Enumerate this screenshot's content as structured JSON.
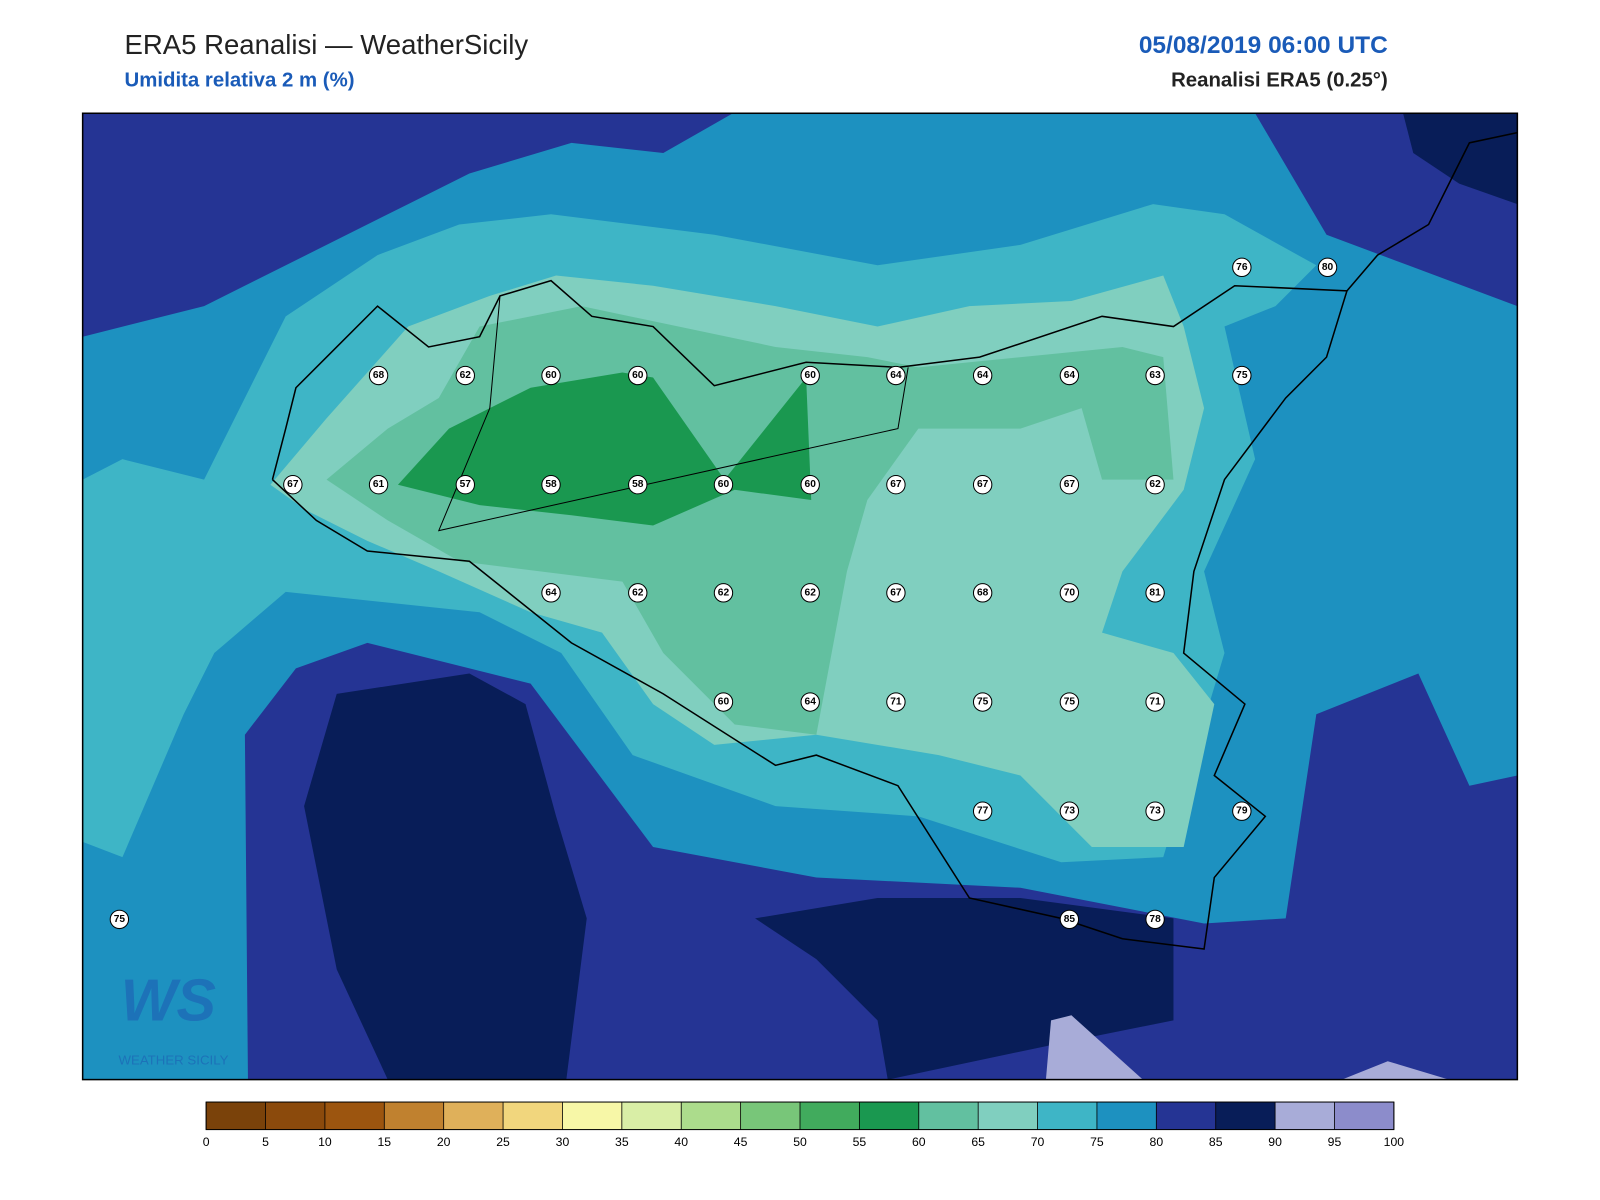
{
  "header": {
    "title": "ERA5 Reanalisi — WeatherSicily",
    "subtitle": "Umidita relativa 2 m (%)",
    "date": "05/08/2019 06:00 UTC",
    "source": "Reanalisi ERA5 (0.25°)"
  },
  "stations": [
    76,
    80,
    68,
    62,
    60,
    60,
    60,
    64,
    64,
    64,
    63,
    75,
    67,
    61,
    57,
    58,
    58,
    60,
    60,
    67,
    67,
    67,
    62,
    64,
    62,
    62,
    62,
    67,
    68,
    70,
    81,
    60,
    64,
    71,
    75,
    75,
    71,
    77,
    73,
    73,
    79,
    75,
    85,
    78
  ],
  "colorbar": {
    "ticks": [
      0,
      5,
      10,
      15,
      20,
      25,
      30,
      35,
      40,
      45,
      50,
      55,
      60,
      65,
      70,
      75,
      80,
      85,
      90,
      95,
      100
    ],
    "colors": [
      "#7a420a",
      "#8b4a0c",
      "#9c550f",
      "#c0812f",
      "#dfb05a",
      "#f1d67d",
      "#f7f7a7",
      "#d9eea6",
      "#acdc8c",
      "#78c679",
      "#41ab5d",
      "#1a9850",
      "#62c0a0",
      "#80cfbf",
      "#3eb5c6",
      "#1d91c0",
      "#253494",
      "#081d58",
      "#a8acd8",
      "#8c8ccb"
    ]
  },
  "logo": {
    "mark": "WS",
    "text": "WEATHER SICILY"
  }
}
